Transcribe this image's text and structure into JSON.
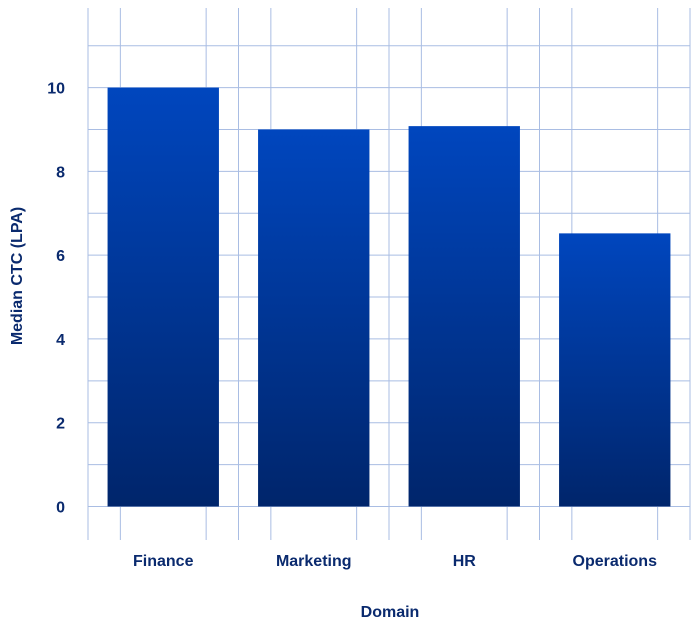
{
  "chart_data": {
    "type": "bar",
    "categories": [
      "Finance",
      "Marketing",
      "HR",
      "Operations"
    ],
    "values": [
      10.0,
      9.0,
      9.08,
      6.52
    ],
    "title": "",
    "xlabel": "Domain",
    "ylabel": "Median CTC (LPA)",
    "ylim": [
      -0.8,
      11.9
    ],
    "yticks": [
      0,
      2,
      4,
      6,
      8,
      10
    ],
    "grid": true,
    "legend": "none"
  },
  "colors": {
    "bar_top": "#0046be",
    "bar_bottom": "#00256b",
    "grid": "#a9bde3",
    "text": "#0a2a6e"
  }
}
